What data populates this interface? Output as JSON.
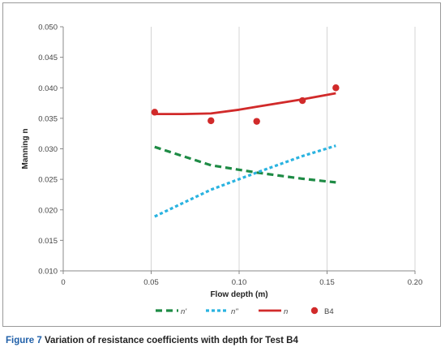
{
  "chart_data": {
    "type": "line",
    "xlabel": "Flow depth (m)",
    "ylabel": "Manning n",
    "xlim": [
      0,
      0.2
    ],
    "ylim": [
      0.01,
      0.05
    ],
    "x_ticks": [
      "0",
      "0.05",
      "0.10",
      "0.15",
      "0.20"
    ],
    "y_ticks": [
      "0.010",
      "0.015",
      "0.020",
      "0.025",
      "0.030",
      "0.035",
      "0.040",
      "0.045",
      "0.050"
    ],
    "grid": "vertical",
    "legend_position": "bottom",
    "series": [
      {
        "name": "n'",
        "style": "dashed",
        "color": "#1e8b45",
        "x": [
          0.052,
          0.084,
          0.11,
          0.136,
          0.155
        ],
        "y": [
          0.0303,
          0.0273,
          0.0261,
          0.0251,
          0.0245
        ]
      },
      {
        "name": "n\"",
        "style": "dotted",
        "color": "#2ab3e0",
        "x": [
          0.052,
          0.084,
          0.11,
          0.136,
          0.155
        ],
        "y": [
          0.0189,
          0.0233,
          0.0261,
          0.0288,
          0.0305
        ]
      },
      {
        "name": "n",
        "style": "solid",
        "color": "#d12a2a",
        "x": [
          0.052,
          0.068,
          0.084,
          0.1,
          0.11,
          0.136,
          0.155
        ],
        "y": [
          0.0357,
          0.0357,
          0.0358,
          0.0364,
          0.0369,
          0.0381,
          0.0391
        ]
      },
      {
        "name": "B4",
        "style": "markers",
        "color": "#d12a2a",
        "x": [
          0.052,
          0.084,
          0.11,
          0.136,
          0.155
        ],
        "y": [
          0.036,
          0.0346,
          0.0345,
          0.0379,
          0.04
        ]
      }
    ]
  },
  "caption": {
    "figure_label": "Figure 7",
    "text": "Variation of resistance coefficients with depth for Test B4"
  }
}
